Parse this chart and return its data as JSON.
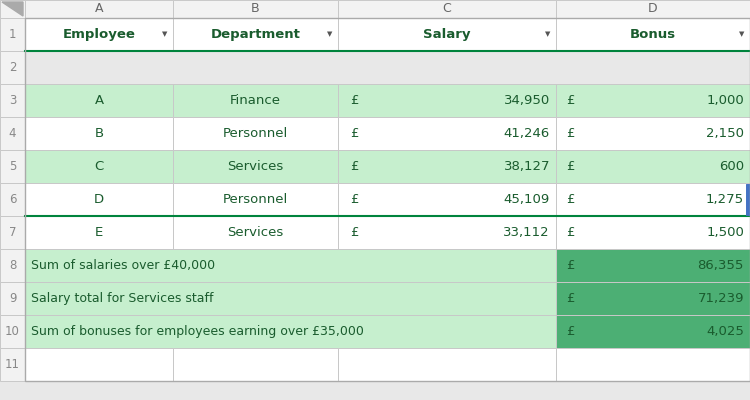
{
  "col_headers": [
    "A",
    "B",
    "C",
    "D"
  ],
  "row_numbers": [
    "1",
    "2",
    "3",
    "4",
    "5",
    "6",
    "7",
    "8",
    "9",
    "10",
    "11"
  ],
  "header_labels": [
    "Employee",
    "Department",
    "Salary",
    "Bonus"
  ],
  "employees": [
    "A",
    "B",
    "C",
    "D",
    "E"
  ],
  "departments": [
    "Finance",
    "Personnel",
    "Services",
    "Personnel",
    "Services"
  ],
  "salaries": [
    "34,950",
    "41,246",
    "38,127",
    "45,109",
    "33,112"
  ],
  "bonuses": [
    "1,000",
    "2,150",
    "600",
    "1,275",
    "1,500"
  ],
  "sumif_labels": [
    "Sum of salaries over £40,000",
    "Salary total for Services staff",
    "Sum of bonuses for employees earning over £35,000"
  ],
  "sumif_values": [
    "86,355",
    "71,239",
    "4,025"
  ],
  "green_light": "#c6efce",
  "green_bright": "#4caf74",
  "green_dark": "#1a6b33",
  "green_border": "#00843d",
  "header_text_color": "#1a5c2e",
  "cell_text_color": "#1a5c2e",
  "border_color": "#c8c8c8",
  "white": "#ffffff",
  "row_num_bg": "#f2f2f2",
  "col_hdr_bg": "#f2f2f2",
  "fig_bg": "#e8e8e8",
  "stripe_rows": [
    0,
    2,
    4
  ],
  "sumif_row_colors": [
    "#c6efce",
    "#ffffff",
    "#c6efce"
  ],
  "sumif_d_color": "#4caf74"
}
